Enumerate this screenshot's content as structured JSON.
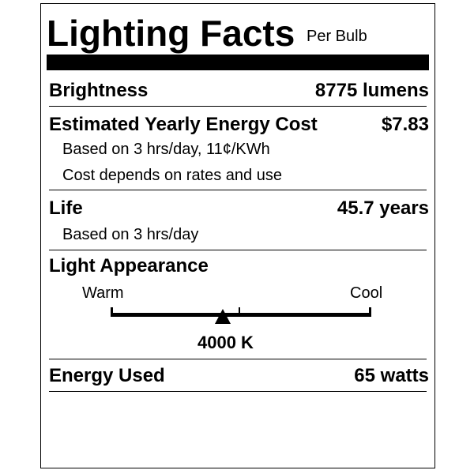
{
  "title": "Lighting Facts",
  "subtitle": "Per Bulb",
  "brightness": {
    "label": "Brightness",
    "value": "8775 lumens"
  },
  "energy_cost": {
    "label": "Estimated Yearly Energy Cost",
    "value": "$7.83",
    "note1": "Based on 3 hrs/day, 11¢/KWh",
    "note2": "Cost depends on rates and use"
  },
  "life": {
    "label": "Life",
    "value": "45.7 years",
    "note": "Based on 3 hrs/day"
  },
  "light_appearance": {
    "label": "Light Appearance",
    "warm_label": "Warm",
    "cool_label": "Cool",
    "value": "4000 K",
    "scale_position": 0.43
  },
  "energy_used": {
    "label": "Energy Used",
    "value": "65 watts"
  }
}
